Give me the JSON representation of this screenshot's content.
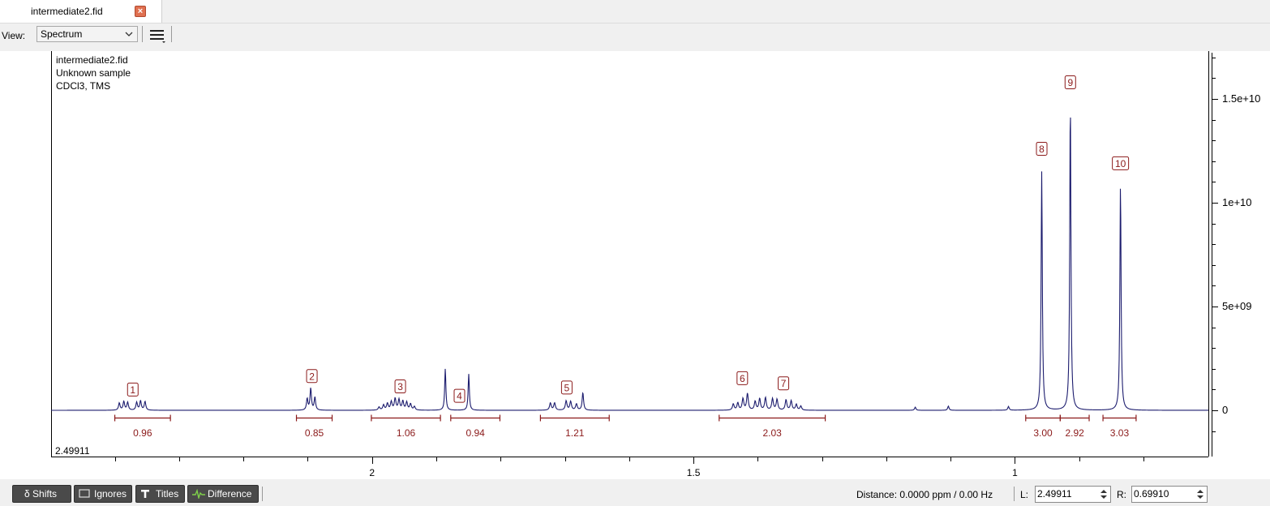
{
  "tab": {
    "title": "intermediate2.fid",
    "close_glyph": "×"
  },
  "toolbar": {
    "view_label": "View:",
    "view_value": "Spectrum",
    "menu_icon": "hamburger-menu-icon"
  },
  "sample_info": {
    "name": "intermediate2.fid",
    "sample": "Unknown sample",
    "solvent": "CDCl3, TMS"
  },
  "corner_value": "2.49911",
  "chart_data": {
    "type": "line",
    "x_unit": "ppm",
    "xlim": [
      2.49911,
      0.6991
    ],
    "x_ticks": [
      {
        "value": 2,
        "label": "2"
      },
      {
        "value": 1.5,
        "label": "1.5"
      },
      {
        "value": 1,
        "label": "1"
      }
    ],
    "ylim": [
      -2000000000,
      17500000000
    ],
    "y_ticks": [
      {
        "value": 15000000000,
        "label": "1.5e+10"
      },
      {
        "value": 10000000000,
        "label": "1e+10"
      },
      {
        "value": 5000000000,
        "label": "5e+09"
      },
      {
        "value": 0,
        "label": "0"
      }
    ],
    "line_color": "#1c1c6e",
    "annotation_color": "#8b1a1a",
    "peaks": [
      {
        "x": 2.393,
        "h": 350000000,
        "w": 0.0028
      },
      {
        "x": 2.386,
        "h": 420000000,
        "w": 0.0028
      },
      {
        "x": 2.38,
        "h": 380000000,
        "w": 0.0028
      },
      {
        "x": 2.366,
        "h": 380000000,
        "w": 0.0028
      },
      {
        "x": 2.36,
        "h": 450000000,
        "w": 0.0028
      },
      {
        "x": 2.353,
        "h": 420000000,
        "w": 0.0028
      },
      {
        "x": 2.1008,
        "h": 550000000,
        "w": 0.0026
      },
      {
        "x": 2.0953,
        "h": 1050000000,
        "w": 0.0026
      },
      {
        "x": 2.0888,
        "h": 620000000,
        "w": 0.0026
      },
      {
        "x": 1.989,
        "h": 150000000,
        "w": 0.003
      },
      {
        "x": 1.982,
        "h": 250000000,
        "w": 0.003
      },
      {
        "x": 1.976,
        "h": 320000000,
        "w": 0.003
      },
      {
        "x": 1.97,
        "h": 400000000,
        "w": 0.003
      },
      {
        "x": 1.964,
        "h": 550000000,
        "w": 0.003
      },
      {
        "x": 1.958,
        "h": 500000000,
        "w": 0.003
      },
      {
        "x": 1.952,
        "h": 430000000,
        "w": 0.003
      },
      {
        "x": 1.946,
        "h": 380000000,
        "w": 0.003
      },
      {
        "x": 1.94,
        "h": 300000000,
        "w": 0.003
      },
      {
        "x": 1.934,
        "h": 170000000,
        "w": 0.003
      },
      {
        "x": 1.886,
        "h": 2000000000,
        "w": 0.0022
      },
      {
        "x": 1.8495,
        "h": 1750000000,
        "w": 0.0022
      },
      {
        "x": 1.7225,
        "h": 350000000,
        "w": 0.003
      },
      {
        "x": 1.716,
        "h": 350000000,
        "w": 0.003
      },
      {
        "x": 1.698,
        "h": 450000000,
        "w": 0.003
      },
      {
        "x": 1.691,
        "h": 420000000,
        "w": 0.003
      },
      {
        "x": 1.682,
        "h": 300000000,
        "w": 0.003
      },
      {
        "x": 1.672,
        "h": 850000000,
        "w": 0.0026
      },
      {
        "x": 1.438,
        "h": 300000000,
        "w": 0.003
      },
      {
        "x": 1.431,
        "h": 350000000,
        "w": 0.003
      },
      {
        "x": 1.423,
        "h": 550000000,
        "w": 0.003
      },
      {
        "x": 1.416,
        "h": 800000000,
        "w": 0.003
      },
      {
        "x": 1.404,
        "h": 420000000,
        "w": 0.003
      },
      {
        "x": 1.397,
        "h": 550000000,
        "w": 0.003
      },
      {
        "x": 1.388,
        "h": 600000000,
        "w": 0.003
      },
      {
        "x": 1.377,
        "h": 550000000,
        "w": 0.003
      },
      {
        "x": 1.37,
        "h": 520000000,
        "w": 0.003
      },
      {
        "x": 1.356,
        "h": 500000000,
        "w": 0.003
      },
      {
        "x": 1.348,
        "h": 450000000,
        "w": 0.003
      },
      {
        "x": 1.34,
        "h": 280000000,
        "w": 0.003
      },
      {
        "x": 1.333,
        "h": 200000000,
        "w": 0.003
      },
      {
        "x": 1.155,
        "h": 150000000,
        "w": 0.0025
      },
      {
        "x": 1.1035,
        "h": 200000000,
        "w": 0.0025
      },
      {
        "x": 1.01,
        "h": 180000000,
        "w": 0.0025
      },
      {
        "x": 0.9583,
        "h": 11500000000,
        "w": 0.0022
      },
      {
        "x": 0.9138,
        "h": 14900000000,
        "w": 0.0022
      },
      {
        "x": 0.8358,
        "h": 10900000000,
        "w": 0.0022
      }
    ],
    "peak_labels": [
      {
        "label": "1",
        "x": 2.372,
        "y": 1000000000
      },
      {
        "label": "2",
        "x": 2.0935,
        "y": 1650000000
      },
      {
        "label": "3",
        "x": 1.956,
        "y": 1150000000
      },
      {
        "label": "4",
        "x": 1.864,
        "y": 700000000
      },
      {
        "label": "5",
        "x": 1.697,
        "y": 1100000000
      },
      {
        "label": "6",
        "x": 1.424,
        "y": 1550000000
      },
      {
        "label": "7",
        "x": 1.36,
        "y": 1300000000
      },
      {
        "label": "8",
        "x": 0.9583,
        "y": 12600000000
      },
      {
        "label": "9",
        "x": 0.9138,
        "y": 15800000000
      },
      {
        "label": "10",
        "x": 0.8358,
        "y": 11900000000
      }
    ],
    "integrals": [
      {
        "from": 2.4,
        "to": 2.3135,
        "value": "0.96"
      },
      {
        "from": 2.1175,
        "to": 2.062,
        "value": "0.85"
      },
      {
        "from": 2.001,
        "to": 1.8935,
        "value": "1.06"
      },
      {
        "from": 1.8775,
        "to": 1.801,
        "value": "0.94"
      },
      {
        "from": 1.738,
        "to": 1.631,
        "value": "1.21"
      },
      {
        "from": 1.46,
        "to": 1.295,
        "value": "2.03"
      },
      {
        "from": 0.9832,
        "to": 0.9295,
        "value": "3.00"
      },
      {
        "from": 0.9295,
        "to": 0.8845,
        "value": "2.92"
      },
      {
        "from": 0.863,
        "to": 0.8115,
        "value": "3.03"
      }
    ]
  },
  "status": {
    "buttons": [
      {
        "label": "δ Shifts",
        "icon": ""
      },
      {
        "label": "Ignores",
        "icon": "ignore-box-icon"
      },
      {
        "label": "Titles",
        "icon": "title-T-icon"
      },
      {
        "label": "Difference",
        "icon": "difference-wave-icon"
      }
    ],
    "distance_text": "Distance:  0.0000 ppm / 0.00 Hz",
    "l_label": "L:",
    "l_value": "2.49911",
    "r_label": "R:",
    "r_value": "0.69910"
  }
}
